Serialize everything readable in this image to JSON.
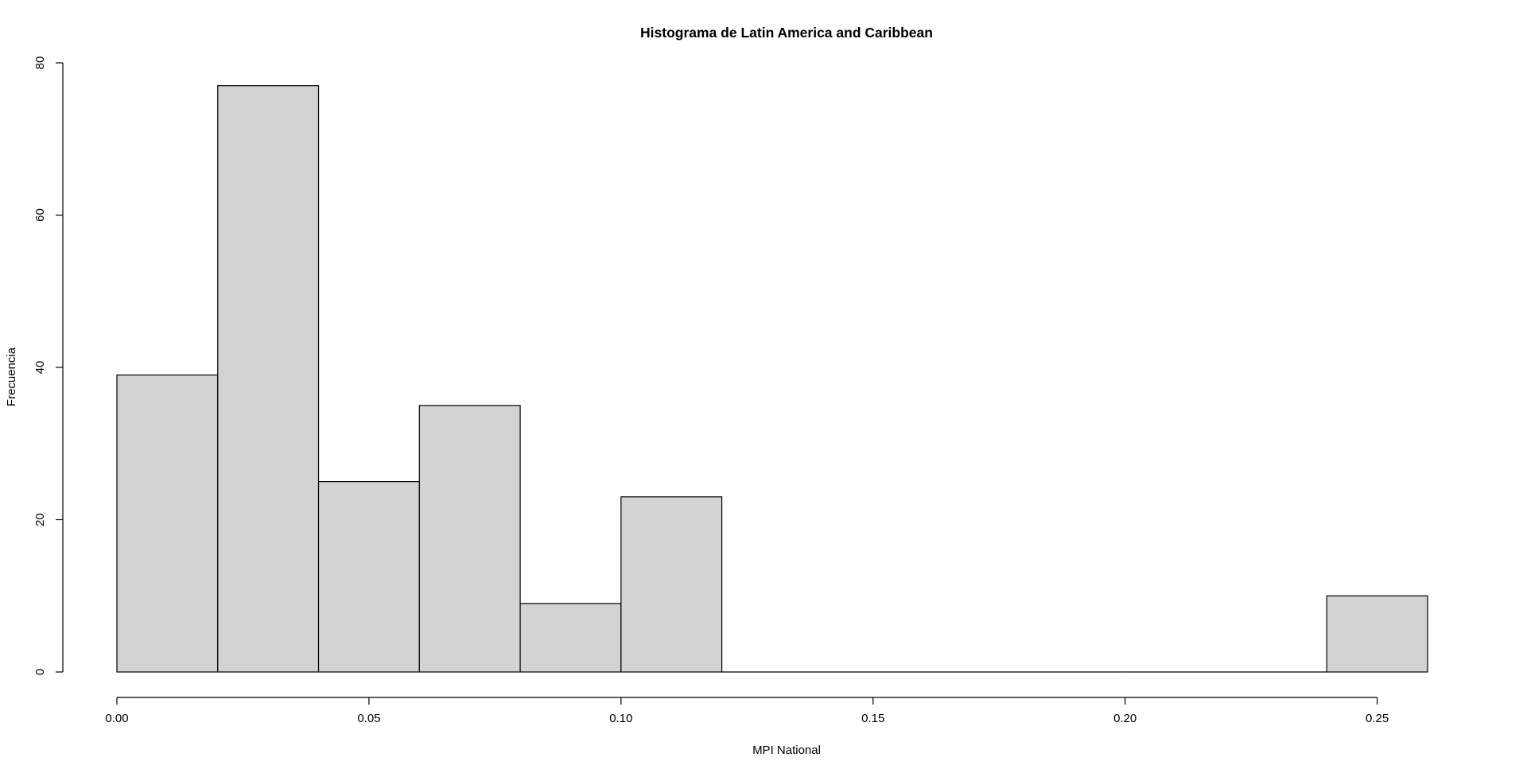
{
  "chart_data": {
    "type": "bar",
    "title": "Histograma de Latin America and Caribbean",
    "xlabel": "MPI National",
    "ylabel": "Frecuencia",
    "bins": [
      {
        "start": 0.0,
        "end": 0.02,
        "count": 39
      },
      {
        "start": 0.02,
        "end": 0.04,
        "count": 77
      },
      {
        "start": 0.04,
        "end": 0.06,
        "count": 25
      },
      {
        "start": 0.06,
        "end": 0.08,
        "count": 35
      },
      {
        "start": 0.08,
        "end": 0.1,
        "count": 9
      },
      {
        "start": 0.1,
        "end": 0.12,
        "count": 23
      },
      {
        "start": 0.12,
        "end": 0.14,
        "count": 0
      },
      {
        "start": 0.14,
        "end": 0.16,
        "count": 0
      },
      {
        "start": 0.16,
        "end": 0.18,
        "count": 0
      },
      {
        "start": 0.18,
        "end": 0.2,
        "count": 0
      },
      {
        "start": 0.2,
        "end": 0.22,
        "count": 0
      },
      {
        "start": 0.22,
        "end": 0.24,
        "count": 0
      },
      {
        "start": 0.24,
        "end": 0.26,
        "count": 10
      }
    ],
    "xlim": [
      0.0,
      0.26
    ],
    "ylim": [
      0,
      80
    ],
    "x_ticks": [
      0.0,
      0.05,
      0.1,
      0.15,
      0.2,
      0.25
    ],
    "x_tick_labels": [
      "0.00",
      "0.05",
      "0.10",
      "0.15",
      "0.20",
      "0.25"
    ],
    "y_ticks": [
      0,
      20,
      40,
      60,
      80
    ],
    "y_tick_labels": [
      "0",
      "20",
      "40",
      "60",
      "80"
    ],
    "bar_fill": "#d3d3d3",
    "bar_stroke": "#000000",
    "grid": false,
    "legend": "none"
  }
}
